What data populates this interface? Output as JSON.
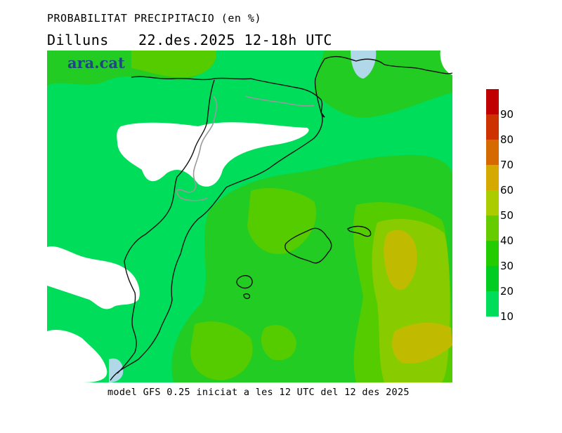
{
  "header": {
    "title": "PROBABILITAT PRECIPITACIO (en %)",
    "day": "Dilluns",
    "datetime": "22.des.2025 12-18h UTC"
  },
  "logo": {
    "text": "ara.cat"
  },
  "legend": {
    "items": [
      {
        "label": "",
        "color": "#c00000"
      },
      {
        "label": "90",
        "color": "#cc3300"
      },
      {
        "label": "80",
        "color": "#d46a00"
      },
      {
        "label": "70",
        "color": "#d4aa00"
      },
      {
        "label": "60",
        "color": "#aacc00"
      },
      {
        "label": "50",
        "color": "#66cc00"
      },
      {
        "label": "40",
        "color": "#22cc00"
      },
      {
        "label": "30",
        "color": "#00cc22"
      },
      {
        "label": "20",
        "color": "#00dd5a"
      },
      {
        "label": "10",
        "color": "#00dd5a"
      }
    ]
  },
  "map": {
    "colors": {
      "base": "#00dd5a",
      "p30": "#22cc22",
      "p40": "#55cc00",
      "p50": "#88cc00",
      "p60": "#c0bb00",
      "dry": "#ffffff",
      "lake": "#b0d8e8",
      "border": "#111111",
      "province": "#999999"
    }
  },
  "footer": {
    "text": "model GFS 0.25 iniciat a les 12 UTC del 12 des 2025"
  }
}
